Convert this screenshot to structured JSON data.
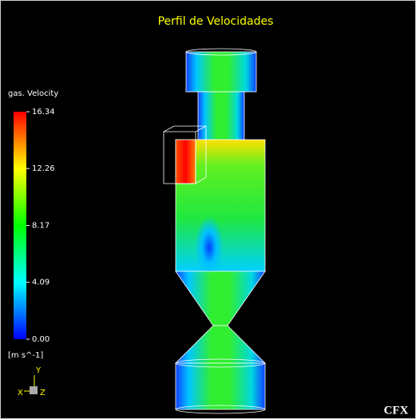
{
  "title": "Perfil de Velocidades",
  "legend": {
    "title": "gas. Velocity",
    "unit": "[m s^-1]",
    "ticks": [
      16.34,
      12.26,
      8.17,
      4.09,
      {
        "value": 0,
        "label": "0.00"
      }
    ]
  },
  "triad": {
    "vertical": "Y",
    "left": "X",
    "right": "Z"
  },
  "logo": "CFX"
}
